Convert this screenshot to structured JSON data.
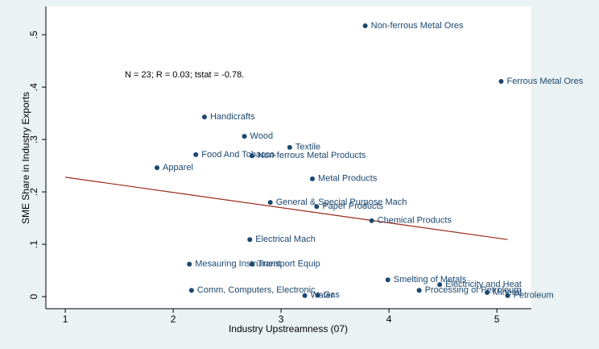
{
  "chart_data": {
    "type": "scatter",
    "annotation": "N = 23; R = 0.03; tstat = -0.78.",
    "x_label": "Industry Upstreamness (07)",
    "y_label": "SME Share in Industry Exports",
    "xlim": [
      0.82,
      5.32
    ],
    "ylim": [
      -0.023,
      0.554
    ],
    "xticks": [
      1,
      2,
      3,
      4,
      5
    ],
    "yticks": [
      0,
      {
        "value": 0.1,
        "label": ".1"
      },
      {
        "value": 0.2,
        "label": ".2"
      },
      {
        "value": 0.3,
        "label": ".3"
      },
      {
        "value": 0.4,
        "label": ".4"
      },
      {
        "value": 0.5,
        "label": ".5"
      }
    ],
    "color": "#1a476f",
    "labels": [
      "Non-ferrous Metal Ores",
      "Ferrous Metal Ores",
      "Handicrafts",
      "Wood",
      "Textile",
      "Food And Tobacco",
      "Non-ferrous Metal Products",
      "Apparel",
      "Metal Products",
      "General & Special Purpose Mach",
      "Paper Products",
      "Chemical Products",
      "Electrical Mach",
      "Mesauring Instrument",
      "Transport Equip",
      "Smelting of Metals",
      "Electricity and Heat",
      "Comm, Computers, Electronic",
      "Processing of Petroleum",
      "Mineral",
      "Petroleum",
      "Water",
      "Gas"
    ],
    "x": [
      3.78,
      5.04,
      2.29,
      2.66,
      3.08,
      2.21,
      2.73,
      1.85,
      3.29,
      2.9,
      3.33,
      3.84,
      2.71,
      2.15,
      2.73,
      3.99,
      4.47,
      2.17,
      4.28,
      4.91,
      5.1,
      3.22,
      3.34
    ],
    "values": [
      0.517,
      0.411,
      0.343,
      0.306,
      0.285,
      0.271,
      0.269,
      0.246,
      0.225,
      0.18,
      0.172,
      0.145,
      0.109,
      0.062,
      0.062,
      0.032,
      0.023,
      0.012,
      0.012,
      0.008,
      0.002,
      0.002,
      0.003
    ],
    "fit": {
      "color": "#9b2a1b",
      "x": [
        1,
        5.1
      ],
      "values": [
        0.228,
        0.109
      ]
    }
  }
}
